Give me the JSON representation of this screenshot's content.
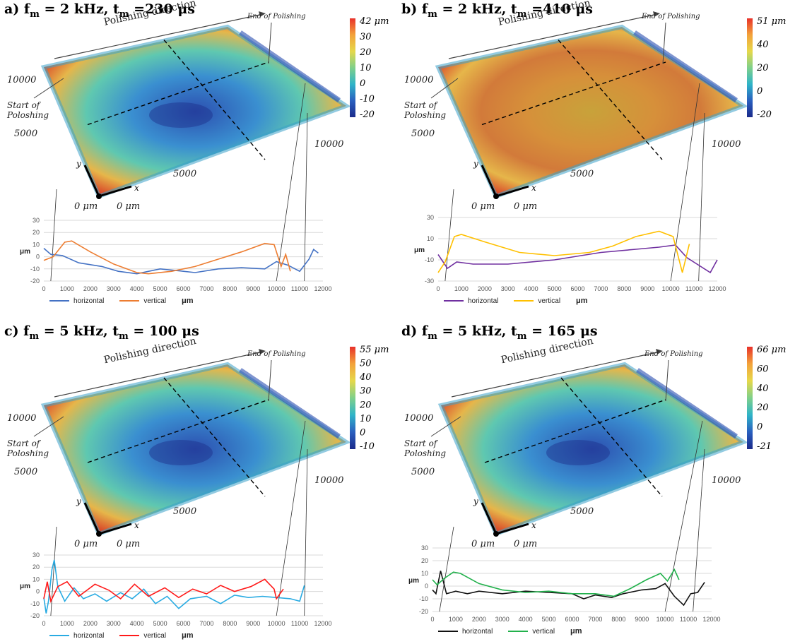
{
  "panels": [
    {
      "id": "a",
      "title_prefix": "a) f",
      "title_sub1": "m",
      "title_mid": " = 2 kHz, t",
      "title_sub2": "m",
      "title_suffix": " =230 μs",
      "cbar_ticks": [
        "42 μm",
        "30",
        "20",
        "10",
        "0",
        "-10",
        "-20"
      ],
      "cbar_stops": [
        "#e8312a",
        "#f3a23a",
        "#e6d84a",
        "#7fd08a",
        "#2fb4c8",
        "#2a5fbf",
        "#1a2a8a"
      ],
      "colors": {
        "horizontal": "#4472c4",
        "vertical": "#ed7d31"
      },
      "horizontal": [
        [
          0,
          7
        ],
        [
          300,
          2
        ],
        [
          800,
          1
        ],
        [
          1500,
          -5
        ],
        [
          2500,
          -8
        ],
        [
          3200,
          -12
        ],
        [
          4000,
          -14
        ],
        [
          5000,
          -10
        ],
        [
          6000,
          -12
        ],
        [
          6500,
          -13
        ],
        [
          7500,
          -10
        ],
        [
          8500,
          -9
        ],
        [
          9500,
          -10
        ],
        [
          10000,
          -4
        ],
        [
          10500,
          -7
        ],
        [
          11000,
          -12
        ],
        [
          11400,
          -2
        ],
        [
          11600,
          6
        ],
        [
          11800,
          3
        ]
      ],
      "vertical": [
        [
          0,
          -3
        ],
        [
          400,
          0
        ],
        [
          900,
          12
        ],
        [
          1200,
          13
        ],
        [
          2000,
          4
        ],
        [
          3000,
          -6
        ],
        [
          4000,
          -13
        ],
        [
          4500,
          -14
        ],
        [
          5500,
          -12
        ],
        [
          6500,
          -8
        ],
        [
          7500,
          -2
        ],
        [
          8500,
          4
        ],
        [
          9500,
          11
        ],
        [
          9900,
          10
        ],
        [
          10200,
          -8
        ],
        [
          10400,
          2
        ],
        [
          10600,
          -12
        ]
      ],
      "ylim": [
        -20,
        30
      ],
      "yticks": [
        "30",
        "20",
        "10",
        "0",
        "-10",
        "-20"
      ],
      "ylabel": "μm",
      "legend": {
        "h": "horizontal",
        "v": "vertical",
        "unit": "μm"
      }
    },
    {
      "id": "b",
      "title_prefix": "b) f",
      "title_sub1": "m",
      "title_mid": " = 2 kHz, t",
      "title_sub2": "m",
      "title_suffix": " =410 μs",
      "cbar_ticks": [
        "51 μm",
        "40",
        "20",
        "0",
        "-20"
      ],
      "cbar_stops": [
        "#e8312a",
        "#f3a23a",
        "#e6d84a",
        "#7fd08a",
        "#2fb4c8",
        "#2a5fbf",
        "#1a2a8a"
      ],
      "colors": {
        "horizontal": "#7030a0",
        "vertical": "#ffc000"
      },
      "horizontal": [
        [
          0,
          -5
        ],
        [
          400,
          -18
        ],
        [
          800,
          -12
        ],
        [
          1500,
          -14
        ],
        [
          3000,
          -14
        ],
        [
          5000,
          -10
        ],
        [
          7000,
          -3
        ],
        [
          8500,
          0
        ],
        [
          9500,
          2
        ],
        [
          10200,
          4
        ],
        [
          10700,
          -8
        ],
        [
          11200,
          -15
        ],
        [
          11700,
          -22
        ],
        [
          12000,
          -10
        ]
      ],
      "vertical": [
        [
          0,
          -22
        ],
        [
          300,
          -12
        ],
        [
          700,
          12
        ],
        [
          1000,
          14
        ],
        [
          2000,
          7
        ],
        [
          3500,
          -3
        ],
        [
          5000,
          -6
        ],
        [
          6500,
          -3
        ],
        [
          7500,
          3
        ],
        [
          8500,
          12
        ],
        [
          9500,
          17
        ],
        [
          10100,
          12
        ],
        [
          10500,
          -22
        ],
        [
          10800,
          5
        ]
      ],
      "ylim": [
        -30,
        30
      ],
      "yticks": [
        "30",
        "10",
        "-10",
        "-30"
      ],
      "ylabel": "μm",
      "legend": {
        "h": "horizontal",
        "v": "vertical",
        "unit": "μm"
      }
    },
    {
      "id": "c",
      "title_prefix": "c) f",
      "title_sub1": "m",
      "title_mid": " = 5 kHz, t",
      "title_sub2": "m",
      "title_suffix": " = 100 μs",
      "cbar_ticks": [
        "55 μm",
        "50",
        "40",
        "30",
        "20",
        "10",
        "0",
        "-10"
      ],
      "cbar_stops": [
        "#e8312a",
        "#f3a23a",
        "#e6d84a",
        "#7fd08a",
        "#2fb4c8",
        "#2a5fbf",
        "#1a2a8a"
      ],
      "colors": {
        "horizontal": "#29abe2",
        "vertical": "#ff1a1a"
      },
      "horizontal": [
        [
          0,
          -5
        ],
        [
          100,
          -18
        ],
        [
          200,
          -8
        ],
        [
          350,
          18
        ],
        [
          450,
          26
        ],
        [
          600,
          4
        ],
        [
          900,
          -8
        ],
        [
          1300,
          3
        ],
        [
          1700,
          -6
        ],
        [
          2200,
          -2
        ],
        [
          2700,
          -8
        ],
        [
          3300,
          -1
        ],
        [
          3800,
          -6
        ],
        [
          4300,
          2
        ],
        [
          4800,
          -10
        ],
        [
          5300,
          -4
        ],
        [
          5800,
          -14
        ],
        [
          6300,
          -6
        ],
        [
          7000,
          -4
        ],
        [
          7600,
          -10
        ],
        [
          8200,
          -3
        ],
        [
          8800,
          -5
        ],
        [
          9400,
          -4
        ],
        [
          10000,
          -5
        ],
        [
          10600,
          -6
        ],
        [
          11000,
          -8
        ],
        [
          11200,
          5
        ]
      ],
      "vertical": [
        [
          0,
          -6
        ],
        [
          150,
          8
        ],
        [
          300,
          -8
        ],
        [
          600,
          4
        ],
        [
          1000,
          8
        ],
        [
          1500,
          -4
        ],
        [
          2200,
          6
        ],
        [
          2800,
          1
        ],
        [
          3300,
          -6
        ],
        [
          3900,
          6
        ],
        [
          4500,
          -4
        ],
        [
          5200,
          3
        ],
        [
          5800,
          -5
        ],
        [
          6400,
          2
        ],
        [
          7000,
          -2
        ],
        [
          7600,
          5
        ],
        [
          8200,
          0
        ],
        [
          8900,
          4
        ],
        [
          9500,
          10
        ],
        [
          9900,
          2
        ],
        [
          10000,
          -6
        ],
        [
          10300,
          2
        ]
      ],
      "ylim": [
        -20,
        30
      ],
      "yticks": [
        "30",
        "20",
        "10",
        "0",
        "-10",
        "-20"
      ],
      "ylabel": "μm",
      "legend": {
        "h": "horizontal",
        "v": "vertical",
        "unit": "μm"
      }
    },
    {
      "id": "d",
      "title_prefix": "d) f",
      "title_sub1": "m",
      "title_mid": " = 5 kHz, t",
      "title_sub2": "m",
      "title_suffix": " = 165 μs",
      "cbar_ticks": [
        "66 μm",
        "60",
        "40",
        "20",
        "0",
        "-21"
      ],
      "cbar_stops": [
        "#e8312a",
        "#f3a23a",
        "#e6d84a",
        "#7fd08a",
        "#2fb4c8",
        "#2a5fbf",
        "#1a2a8a"
      ],
      "colors": {
        "horizontal": "#111111",
        "vertical": "#22b14c"
      },
      "horizontal": [
        [
          0,
          -3
        ],
        [
          150,
          -6
        ],
        [
          350,
          12
        ],
        [
          600,
          -6
        ],
        [
          1000,
          -4
        ],
        [
          1500,
          -6
        ],
        [
          2000,
          -4
        ],
        [
          3000,
          -6
        ],
        [
          4000,
          -4
        ],
        [
          5000,
          -5
        ],
        [
          6000,
          -6
        ],
        [
          6500,
          -10
        ],
        [
          7000,
          -7
        ],
        [
          7700,
          -9
        ],
        [
          8200,
          -6
        ],
        [
          9000,
          -3
        ],
        [
          9600,
          -2
        ],
        [
          10000,
          2
        ],
        [
          10400,
          -8
        ],
        [
          10800,
          -15
        ],
        [
          11100,
          -6
        ],
        [
          11400,
          -5
        ],
        [
          11700,
          3
        ]
      ],
      "vertical": [
        [
          0,
          5
        ],
        [
          200,
          1
        ],
        [
          500,
          6
        ],
        [
          900,
          11
        ],
        [
          1200,
          10
        ],
        [
          2000,
          2
        ],
        [
          3000,
          -3
        ],
        [
          4000,
          -5
        ],
        [
          5000,
          -4
        ],
        [
          6000,
          -6
        ],
        [
          7000,
          -6
        ],
        [
          7800,
          -8
        ],
        [
          8500,
          -2
        ],
        [
          9200,
          5
        ],
        [
          9800,
          10
        ],
        [
          10100,
          4
        ],
        [
          10400,
          13
        ],
        [
          10600,
          5
        ]
      ],
      "ylim": [
        -20,
        30
      ],
      "yticks": [
        "30",
        "20",
        "10",
        "0",
        "-10",
        "-20"
      ],
      "ylabel": "μm",
      "legend": {
        "h": "horizontal",
        "v": "vertical",
        "unit": "μm"
      }
    }
  ],
  "surface_labels": {
    "polishing_direction": "Polishing direction",
    "end_of_polishing": "End of Polishing",
    "start_line1": "Start of",
    "start_line2": "Poloshing",
    "y_10000": "10000",
    "y_5000": "5000",
    "x_10000": "10000",
    "x_5000": "5000",
    "origin_y": "0 μm",
    "origin_x": "0 μm",
    "axis_x": "x",
    "axis_y": "y"
  },
  "xticks": [
    "0",
    "1000",
    "2000",
    "3000",
    "4000",
    "5000",
    "6000",
    "7000",
    "8000",
    "9000",
    "10000",
    "11000",
    "12000"
  ],
  "chart_data": [
    {
      "type": "line",
      "title": "a) fm = 2 kHz, tm =230 μs",
      "xlabel": "μm",
      "ylabel": "μm",
      "xlim": [
        0,
        12000
      ],
      "ylim": [
        -20,
        30
      ],
      "series_names": [
        "horizontal",
        "vertical"
      ]
    },
    {
      "type": "line",
      "title": "b) fm = 2 kHz, tm =410 μs",
      "xlabel": "μm",
      "ylabel": "μm",
      "xlim": [
        0,
        12000
      ],
      "ylim": [
        -30,
        30
      ],
      "series_names": [
        "horizontal",
        "vertical"
      ]
    },
    {
      "type": "line",
      "title": "c) fm = 5 kHz, tm = 100 μs",
      "xlabel": "μm",
      "ylabel": "μm",
      "xlim": [
        0,
        12000
      ],
      "ylim": [
        -20,
        30
      ],
      "series_names": [
        "horizontal",
        "vertical"
      ]
    },
    {
      "type": "line",
      "title": "d) fm = 5 kHz, tm = 165 μs",
      "xlabel": "μm",
      "ylabel": "μm",
      "xlim": [
        0,
        12000
      ],
      "ylim": [
        -20,
        30
      ],
      "series_names": [
        "horizontal",
        "vertical"
      ]
    }
  ]
}
